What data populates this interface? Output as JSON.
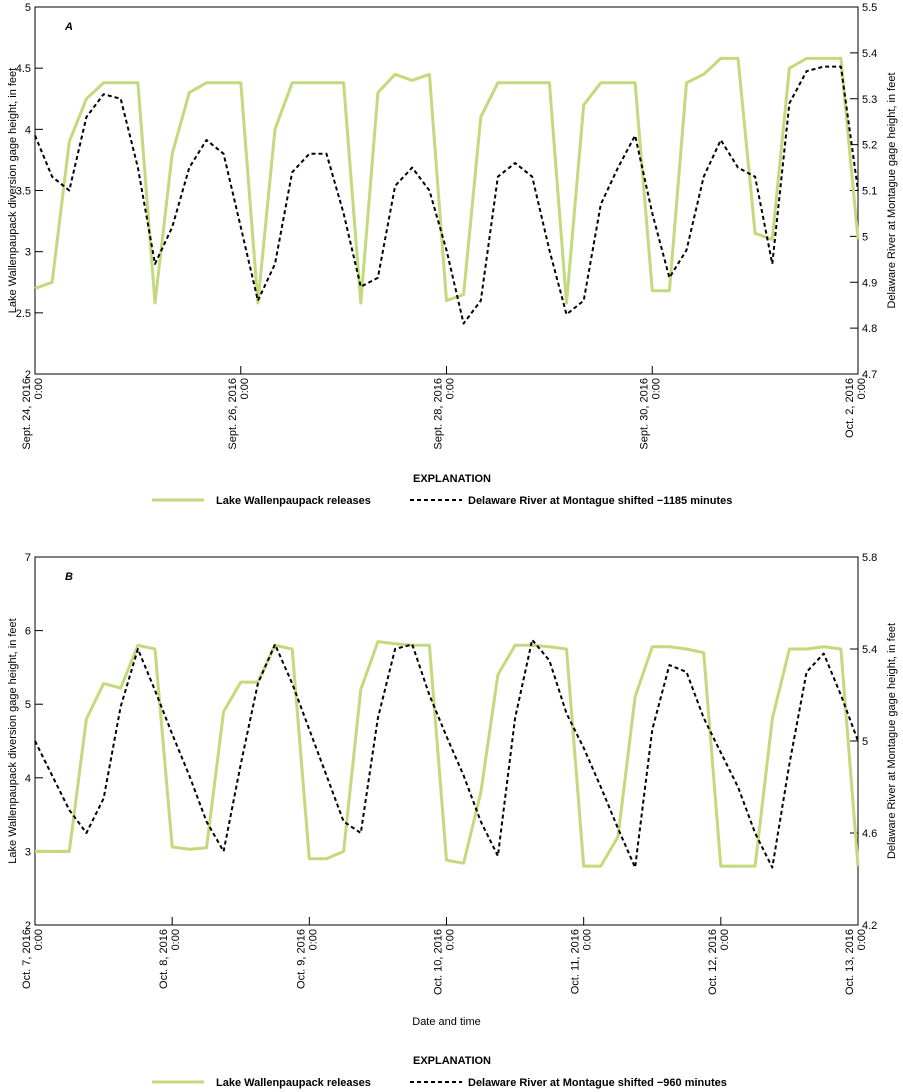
{
  "chart_data": [
    {
      "type": "line",
      "panel_label": "A",
      "ylabel": "Lake Wallenpaupack diversion gage height, in feet",
      "y2label": "Delaware River at Montague gage height, in feet",
      "legend_title": "EXPLANATION",
      "xlim": [
        "2016-09-24T00:00",
        "2016-10-02T00:00"
      ],
      "xticks": [
        {
          "value": "2016-09-24T00:00",
          "label": [
            "Sept. 24, 2016",
            "0:00"
          ]
        },
        {
          "value": "2016-09-26T00:00",
          "label": [
            "Sept. 26, 2016",
            "0:00"
          ]
        },
        {
          "value": "2016-09-28T00:00",
          "label": [
            "Sept. 28, 2016",
            "0:00"
          ]
        },
        {
          "value": "2016-09-30T00:00",
          "label": [
            "Sept. 30, 2016",
            "0:00"
          ]
        },
        {
          "value": "2016-10-02T00:00",
          "label": [
            "Oct. 2, 2016",
            "0:00"
          ]
        }
      ],
      "ylim": [
        2,
        5
      ],
      "yticks": [
        2,
        2.5,
        3,
        3.5,
        4,
        4.5,
        5
      ],
      "y2lim": [
        4.7,
        5.5
      ],
      "y2ticks": [
        4.7,
        4.8,
        4.9,
        5,
        5.1,
        5.2,
        5.3,
        5.4,
        5.5
      ],
      "x": [
        "2016-09-24T00:00",
        "2016-09-24T04:00",
        "2016-09-24T08:00",
        "2016-09-24T12:00",
        "2016-09-24T16:00",
        "2016-09-24T20:00",
        "2016-09-25T00:00",
        "2016-09-25T04:00",
        "2016-09-25T08:00",
        "2016-09-25T12:00",
        "2016-09-25T16:00",
        "2016-09-25T20:00",
        "2016-09-26T00:00",
        "2016-09-26T04:00",
        "2016-09-26T08:00",
        "2016-09-26T12:00",
        "2016-09-26T16:00",
        "2016-09-26T20:00",
        "2016-09-27T00:00",
        "2016-09-27T04:00",
        "2016-09-27T08:00",
        "2016-09-27T12:00",
        "2016-09-27T16:00",
        "2016-09-27T20:00",
        "2016-09-28T00:00",
        "2016-09-28T04:00",
        "2016-09-28T08:00",
        "2016-09-28T12:00",
        "2016-09-28T16:00",
        "2016-09-28T20:00",
        "2016-09-29T00:00",
        "2016-09-29T04:00",
        "2016-09-29T08:00",
        "2016-09-29T12:00",
        "2016-09-29T16:00",
        "2016-09-29T20:00",
        "2016-09-30T00:00",
        "2016-09-30T04:00",
        "2016-09-30T08:00",
        "2016-09-30T12:00",
        "2016-09-30T16:00",
        "2016-09-30T20:00",
        "2016-10-01T00:00",
        "2016-10-01T04:00",
        "2016-10-01T08:00",
        "2016-10-01T12:00",
        "2016-10-01T16:00",
        "2016-10-01T20:00",
        "2016-10-02T00:00"
      ],
      "series": [
        {
          "name": "Lake Wallenpaupack releases",
          "color": "#c2da7c",
          "dash": false,
          "values": [
            2.7,
            2.75,
            3.9,
            4.25,
            4.38,
            4.38,
            4.38,
            2.58,
            3.8,
            4.3,
            4.38,
            4.38,
            4.38,
            2.58,
            4.0,
            4.38,
            4.38,
            4.38,
            4.38,
            2.58,
            4.3,
            4.45,
            4.4,
            4.45,
            2.6,
            2.65,
            4.1,
            4.38,
            4.38,
            4.38,
            4.38,
            2.58,
            4.2,
            4.38,
            4.38,
            4.38,
            2.68,
            2.68,
            4.38,
            4.45,
            4.58,
            4.58,
            3.15,
            3.1,
            4.5,
            4.58,
            4.58,
            4.58,
            3.1
          ]
        },
        {
          "name": "Delaware River at Montague shifted −1185 minutes",
          "color": "#000000",
          "dash": true,
          "axis": "y2",
          "values": [
            5.22,
            5.13,
            5.1,
            5.26,
            5.31,
            5.3,
            5.15,
            4.94,
            5.02,
            5.15,
            5.21,
            5.18,
            5.02,
            4.86,
            4.94,
            5.14,
            5.18,
            5.18,
            5.05,
            4.89,
            4.91,
            5.11,
            5.15,
            5.1,
            4.97,
            4.81,
            4.86,
            5.13,
            5.16,
            5.13,
            4.97,
            4.83,
            4.86,
            5.07,
            5.15,
            5.22,
            5.05,
            4.91,
            4.97,
            5.13,
            5.21,
            5.15,
            5.13,
            4.94,
            5.29,
            5.36,
            5.37,
            5.37,
            5.1
          ]
        }
      ]
    },
    {
      "type": "line",
      "panel_label": "B",
      "ylabel": "Lake Wallenpaupack diversion gage height, in feet",
      "y2label": "Delaware River at Montague gage height, in feet",
      "xlabel": "Date and time",
      "legend_title": "EXPLANATION",
      "xlim": [
        "2016-10-07T00:00",
        "2016-10-13T00:00"
      ],
      "xticks": [
        {
          "value": "2016-10-07T00:00",
          "label": [
            "Oct. 7, 2016",
            "0:00"
          ]
        },
        {
          "value": "2016-10-08T00:00",
          "label": [
            "Oct. 8, 2016",
            "0:00"
          ]
        },
        {
          "value": "2016-10-09T00:00",
          "label": [
            "Oct. 9, 2016",
            "0:00"
          ]
        },
        {
          "value": "2016-10-10T00:00",
          "label": [
            "Oct. 10, 2016",
            "0:00"
          ]
        },
        {
          "value": "2016-10-11T00:00",
          "label": [
            "Oct. 11, 2016",
            "0:00"
          ]
        },
        {
          "value": "2016-10-12T00:00",
          "label": [
            "Oct. 12, 2016",
            "0:00"
          ]
        },
        {
          "value": "2016-10-13T00:00",
          "label": [
            "Oct. 13, 2016",
            "0:00"
          ]
        }
      ],
      "ylim": [
        2,
        7
      ],
      "yticks": [
        2,
        3,
        4,
        5,
        6,
        7
      ],
      "y2lim": [
        4.2,
        5.8
      ],
      "y2ticks": [
        4.2,
        4.6,
        5,
        5.4,
        5.8
      ],
      "x": [
        "2016-10-07T00:00",
        "2016-10-07T03:00",
        "2016-10-07T06:00",
        "2016-10-07T09:00",
        "2016-10-07T12:00",
        "2016-10-07T15:00",
        "2016-10-07T18:00",
        "2016-10-07T21:00",
        "2016-10-08T00:00",
        "2016-10-08T03:00",
        "2016-10-08T06:00",
        "2016-10-08T09:00",
        "2016-10-08T12:00",
        "2016-10-08T15:00",
        "2016-10-08T18:00",
        "2016-10-08T21:00",
        "2016-10-09T00:00",
        "2016-10-09T03:00",
        "2016-10-09T06:00",
        "2016-10-09T09:00",
        "2016-10-09T12:00",
        "2016-10-09T15:00",
        "2016-10-09T18:00",
        "2016-10-09T21:00",
        "2016-10-10T00:00",
        "2016-10-10T03:00",
        "2016-10-10T06:00",
        "2016-10-10T09:00",
        "2016-10-10T12:00",
        "2016-10-10T15:00",
        "2016-10-10T18:00",
        "2016-10-10T21:00",
        "2016-10-11T00:00",
        "2016-10-11T03:00",
        "2016-10-11T06:00",
        "2016-10-11T09:00",
        "2016-10-11T12:00",
        "2016-10-11T15:00",
        "2016-10-11T18:00",
        "2016-10-11T21:00",
        "2016-10-12T00:00",
        "2016-10-12T03:00",
        "2016-10-12T06:00",
        "2016-10-12T09:00",
        "2016-10-12T12:00",
        "2016-10-12T15:00",
        "2016-10-12T18:00",
        "2016-10-12T21:00",
        "2016-10-13T00:00"
      ],
      "series": [
        {
          "name": "Lake Wallenpaupack releases",
          "color": "#c2da7c",
          "dash": false,
          "values": [
            3.0,
            3.0,
            3.0,
            4.8,
            5.28,
            5.22,
            5.8,
            5.75,
            3.06,
            3.03,
            3.05,
            4.9,
            5.3,
            5.3,
            5.8,
            5.75,
            2.9,
            2.9,
            3.0,
            5.2,
            5.85,
            5.82,
            5.8,
            5.8,
            2.88,
            2.84,
            3.8,
            5.4,
            5.8,
            5.8,
            5.78,
            5.75,
            2.8,
            2.8,
            3.2,
            5.1,
            5.78,
            5.78,
            5.75,
            5.7,
            2.8,
            2.8,
            2.8,
            4.8,
            5.75,
            5.75,
            5.78,
            5.75,
            2.8
          ]
        },
        {
          "name": "Delaware River at Montague shifted −960 minutes",
          "color": "#000000",
          "dash": true,
          "axis": "y2",
          "values": [
            5.0,
            4.85,
            4.7,
            4.6,
            4.75,
            5.15,
            5.4,
            5.22,
            5.03,
            4.85,
            4.65,
            4.52,
            4.9,
            5.25,
            5.42,
            5.25,
            5.05,
            4.85,
            4.65,
            4.6,
            5.1,
            5.4,
            5.42,
            5.2,
            5.02,
            4.85,
            4.65,
            4.5,
            5.1,
            5.44,
            5.35,
            5.12,
            4.97,
            4.8,
            4.62,
            4.45,
            5.05,
            5.33,
            5.3,
            5.1,
            4.95,
            4.8,
            4.6,
            4.45,
            4.9,
            5.3,
            5.38,
            5.2,
            5.0
          ]
        }
      ]
    }
  ]
}
